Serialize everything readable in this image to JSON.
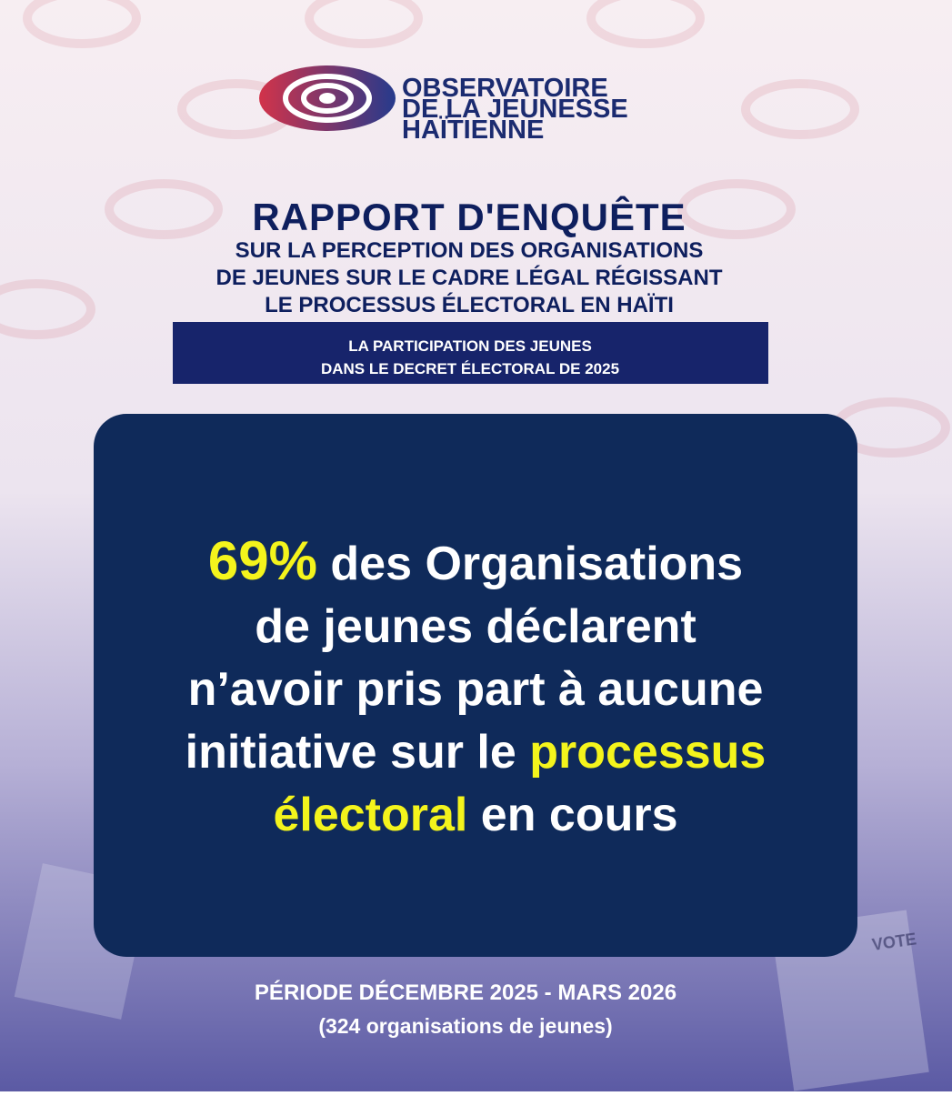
{
  "logo": {
    "lines": [
      "OBSERVATOIRE",
      "DE LA JEUNESSE",
      "HAÏTIENNE"
    ]
  },
  "header": {
    "title": "RAPPORT D'ENQUÊTE",
    "subtitle": [
      "SUR LA PERCEPTION DES ORGANISATIONS",
      "DE JEUNES SUR LE CADRE LÉGAL RÉGISSANT",
      "LE PROCESSUS ÉLECTORAL EN HAÏTI"
    ]
  },
  "banner": {
    "lines": [
      "LA PARTICIPATION DES JEUNES",
      "DANS LE DECRET ÉLECTORAL DE 2025"
    ]
  },
  "statement": {
    "lines": [
      [
        {
          "text": "69%",
          "highlight": true
        },
        {
          "text": " des Organisations",
          "highlight": false
        }
      ],
      [
        {
          "text": "de jeunes déclarent",
          "highlight": false
        }
      ],
      [
        {
          "text": "n’avoir pris part à aucune",
          "highlight": false
        }
      ],
      [
        {
          "text": "initiative sur le ",
          "highlight": false
        },
        {
          "text": "processus",
          "highlight": true
        }
      ],
      [
        {
          "text": "électoral",
          "highlight": true
        },
        {
          "text": " en cours",
          "highlight": false
        }
      ]
    ]
  },
  "footer": {
    "period": "PÉRIODE DÉCEMBRE 2025 - MARS 2026",
    "sample": "(324 organisations de jeunes)"
  },
  "ballot_label": "VOTE"
}
